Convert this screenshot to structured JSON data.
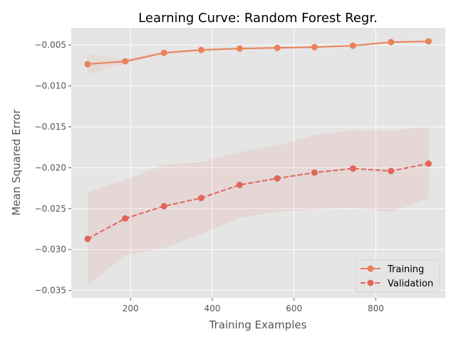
{
  "chart_data": {
    "type": "line",
    "title": "Learning Curve: Random Forest Regr.",
    "xlabel": "Training Examples",
    "ylabel": "Mean Squared Error",
    "xlim": [
      55,
      970
    ],
    "ylim": [
      -0.0359,
      -0.0029
    ],
    "xticks": [
      200,
      400,
      600,
      800
    ],
    "xtick_labels": [
      "200",
      "400",
      "600",
      "800"
    ],
    "yticks": [
      -0.005,
      -0.01,
      -0.015,
      -0.02,
      -0.025,
      -0.03,
      -0.035
    ],
    "ytick_labels": [
      "−0.005",
      "−0.010",
      "−0.015",
      "−0.020",
      "−0.025",
      "−0.030",
      "−0.035"
    ],
    "grid": true,
    "style": "ggplot",
    "legend_position": "lower right",
    "x": [
      95,
      187,
      282,
      373,
      467,
      559,
      650,
      744,
      837,
      929
    ],
    "series": [
      {
        "name": "Training",
        "color": "#E8825A",
        "linestyle": "solid",
        "marker": "o",
        "values": [
          -0.00735,
          -0.007,
          -0.00596,
          -0.00561,
          -0.00544,
          -0.00535,
          -0.00526,
          -0.00509,
          -0.00465,
          -0.00456
        ],
        "band_upper": [
          -0.00615,
          -0.0067,
          -0.0058,
          -0.00545,
          -0.0053,
          -0.00522,
          -0.00515,
          -0.00497,
          -0.00455,
          -0.00446
        ],
        "band_lower": [
          -0.00855,
          -0.0073,
          -0.00612,
          -0.00577,
          -0.00558,
          -0.00548,
          -0.00537,
          -0.00521,
          -0.00475,
          -0.00466
        ]
      },
      {
        "name": "Validation",
        "color": "#E0665A",
        "linestyle": "dashed",
        "marker": "o",
        "values": [
          -0.0287,
          -0.0262,
          -0.0247,
          -0.0237,
          -0.0221,
          -0.0213,
          -0.0206,
          -0.0201,
          -0.0204,
          -0.0195
        ],
        "band_upper": [
          -0.023,
          -0.0215,
          -0.0196,
          -0.0193,
          -0.0181,
          -0.0173,
          -0.016,
          -0.0154,
          -0.0155,
          -0.015
        ],
        "band_lower": [
          -0.0344,
          -0.0307,
          -0.0298,
          -0.0281,
          -0.0261,
          -0.0254,
          -0.0251,
          -0.0249,
          -0.0254,
          -0.0238
        ]
      }
    ]
  }
}
